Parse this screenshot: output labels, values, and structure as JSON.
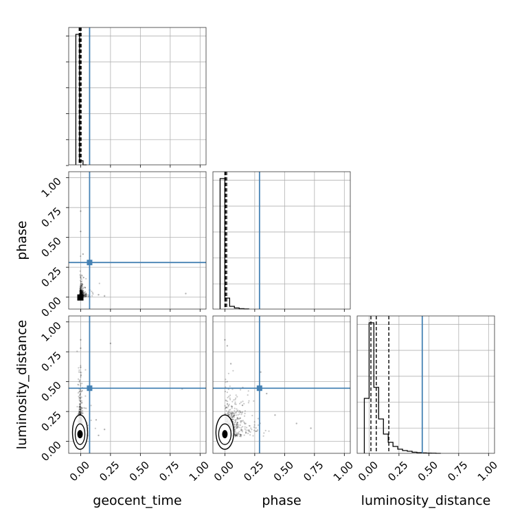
{
  "chart_data": {
    "type": "corner",
    "parameters": [
      "geocent_time",
      "phase",
      "luminosity_distance"
    ],
    "axis_range": [
      -0.1,
      1.05
    ],
    "ticks": [
      0.0,
      0.25,
      0.5,
      0.75,
      1.0
    ],
    "tick_labels": [
      "0.00",
      "0.25",
      "0.50",
      "0.75",
      "1.00"
    ],
    "grid": true,
    "colors": {
      "truth": "#4682b4",
      "hist": "#000000",
      "points": "#000000",
      "grid": "#b0b0b0"
    },
    "truths": {
      "geocent_time": 0.075,
      "phase": 0.29,
      "luminosity_distance": 0.445
    },
    "histograms": [
      {
        "parameter": "geocent_time",
        "bins": [
          -0.04,
          -0.01,
          0.02,
          0.05
        ],
        "heights": [
          0.95,
          0.03,
          0.0
        ],
        "quantiles": [
          -0.012,
          -0.004,
          0.004
        ]
      },
      {
        "parameter": "phase",
        "bins": [
          -0.04,
          0.0,
          0.04,
          0.08,
          0.12,
          0.16,
          0.2
        ],
        "heights": [
          0.95,
          0.08,
          0.02,
          0.008,
          0.003,
          0.001
        ],
        "quantiles": [
          0.0,
          0.005,
          0.015
        ]
      },
      {
        "parameter": "luminosity_distance",
        "bins": [
          -0.04,
          0.0,
          0.04,
          0.08,
          0.12,
          0.16,
          0.2,
          0.24,
          0.28,
          0.32,
          0.36,
          0.4,
          0.44,
          0.48,
          0.52,
          0.56,
          0.6
        ],
        "heights": [
          0.4,
          0.95,
          0.48,
          0.25,
          0.14,
          0.08,
          0.05,
          0.03,
          0.02,
          0.015,
          0.008,
          0.005,
          0.003,
          0.002,
          0.001,
          0.0
        ],
        "quantiles": [
          0.015,
          0.06,
          0.165
        ]
      }
    ],
    "scatter_panels": [
      {
        "x": "geocent_time",
        "y": "phase",
        "density_center": [
          -0.005,
          0.0
        ],
        "outliers": [
          [
            0.0,
            0.72
          ],
          [
            0.0,
            0.55
          ],
          [
            0.02,
            0.36
          ],
          [
            0.05,
            0.02
          ],
          [
            0.15,
            0.02
          ],
          [
            0.2,
            0.01
          ],
          [
            0.88,
            0.03
          ]
        ]
      },
      {
        "x": "geocent_time",
        "y": "luminosity_distance",
        "density_center": [
          -0.005,
          0.06
        ],
        "outliers": [
          [
            0.0,
            0.85
          ],
          [
            0.0,
            0.78
          ],
          [
            0.0,
            0.62
          ],
          [
            0.25,
            0.82
          ],
          [
            0.13,
            0.18
          ],
          [
            0.2,
            0.1
          ],
          [
            0.15,
            0.05
          ],
          [
            0.85,
            0.44
          ]
        ]
      },
      {
        "x": "phase",
        "y": "luminosity_distance",
        "density_center": [
          0.0,
          0.06
        ],
        "outliers": [
          [
            0.0,
            0.85
          ],
          [
            0.02,
            0.8
          ],
          [
            0.05,
            0.65
          ],
          [
            0.3,
            0.58
          ],
          [
            0.42,
            0.22
          ],
          [
            0.6,
            0.15
          ],
          [
            0.72,
            0.11
          ],
          [
            0.15,
            0.45
          ],
          [
            0.35,
            0.4
          ]
        ]
      }
    ],
    "xlabels": [
      "geocent_time",
      "phase",
      "luminosity_distance"
    ],
    "ylabels": [
      "phase",
      "luminosity_distance"
    ]
  }
}
